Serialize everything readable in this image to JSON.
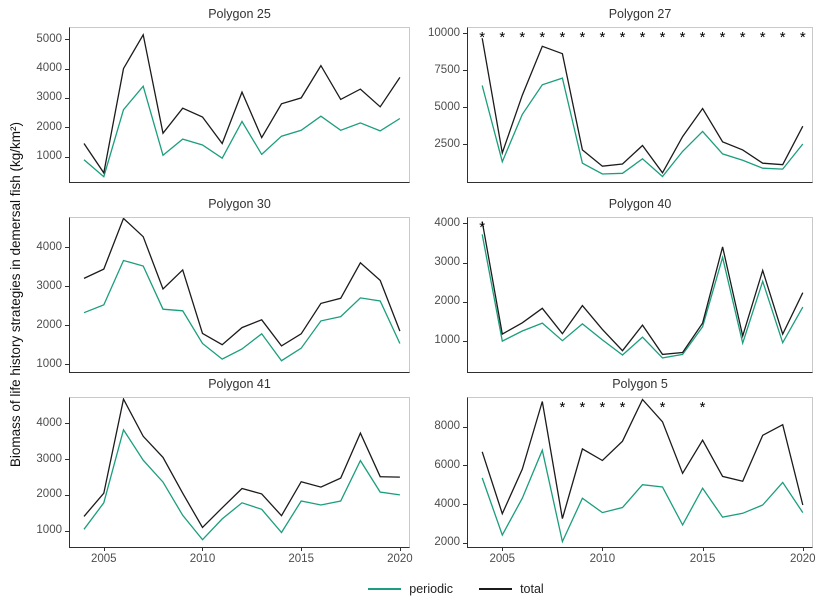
{
  "figure": {
    "y_axis_label": "Biomass of life history strategies in demersal fish (kg/km²)"
  },
  "chart_data": {
    "type": "line",
    "x_years": [
      2004,
      2005,
      2006,
      2007,
      2008,
      2009,
      2010,
      2011,
      2012,
      2013,
      2014,
      2015,
      2016,
      2017,
      2018,
      2019,
      2020
    ],
    "xlim": [
      2003.29,
      2020.46
    ],
    "xticks": [
      2005,
      2010,
      2015,
      2020
    ],
    "xlabel": "",
    "ylabel": "Biomass of life history strategies in demersal fish (kg/km²)",
    "grid": "off",
    "legend_position": "bottom",
    "legend": [
      {
        "name": "periodic",
        "color": "#1b9e7e"
      },
      {
        "name": "total",
        "color": "#1b1b1b"
      }
    ],
    "panels": [
      {
        "title": "Polygon 25",
        "ylim": [
          140,
          5380
        ],
        "yticks": [
          1000,
          2000,
          3000,
          4000,
          5000
        ],
        "asterisk_years": [],
        "series": {
          "periodic": [
            900,
            320,
            2600,
            3400,
            1050,
            1600,
            1400,
            950,
            2200,
            1080,
            1700,
            1900,
            2380,
            1900,
            2150,
            1880,
            2300
          ],
          "total": [
            1450,
            450,
            4000,
            5150,
            1800,
            2650,
            2350,
            1450,
            3200,
            1650,
            2800,
            3000,
            4100,
            2950,
            3300,
            2700,
            3700
          ]
        }
      },
      {
        "title": "Polygon 27",
        "ylim": [
          -70,
          10340
        ],
        "yticks": [
          2500,
          5000,
          7500,
          10000
        ],
        "asterisk_years": [
          2004,
          2005,
          2006,
          2007,
          2008,
          2009,
          2010,
          2011,
          2012,
          2013,
          2014,
          2015,
          2016,
          2017,
          2018,
          2019,
          2020
        ],
        "series": {
          "periodic": [
            6450,
            1300,
            4500,
            6500,
            6950,
            1200,
            470,
            520,
            1500,
            300,
            2000,
            3350,
            1830,
            1400,
            860,
            800,
            2500
          ],
          "total": [
            9650,
            1900,
            5800,
            9100,
            8600,
            2100,
            1000,
            1150,
            2400,
            550,
            3000,
            4900,
            2650,
            2100,
            1200,
            1100,
            3700
          ]
        }
      },
      {
        "title": "Polygon 30",
        "ylim": [
          800,
          4750
        ],
        "yticks": [
          1000,
          2000,
          3000,
          4000
        ],
        "asterisk_years": [],
        "series": {
          "periodic": [
            2320,
            2520,
            3660,
            3520,
            2410,
            2370,
            1530,
            1130,
            1390,
            1780,
            1090,
            1410,
            2110,
            2220,
            2700,
            2620,
            1530
          ],
          "total": [
            3200,
            3440,
            4740,
            4270,
            2930,
            3420,
            1790,
            1500,
            1940,
            2140,
            1470,
            1780,
            2560,
            2690,
            3600,
            3150,
            1850
          ]
        }
      },
      {
        "title": "Polygon 40",
        "ylim": [
          200,
          4140
        ],
        "yticks": [
          1000,
          2000,
          3000,
          4000
        ],
        "asterisk_years": [
          2004
        ],
        "series": {
          "periodic": [
            3720,
            990,
            1250,
            1450,
            1000,
            1430,
            1020,
            635,
            1090,
            560,
            650,
            1360,
            3130,
            940,
            2520,
            950,
            1860
          ],
          "total": [
            4050,
            1170,
            1460,
            1830,
            1180,
            1900,
            1290,
            745,
            1400,
            650,
            700,
            1450,
            3400,
            1120,
            2800,
            1170,
            2230
          ]
        }
      },
      {
        "title": "Polygon 41",
        "ylim": [
          545,
          4710
        ],
        "yticks": [
          1000,
          2000,
          3000,
          4000
        ],
        "asterisk_years": [],
        "series": {
          "periodic": [
            1040,
            1780,
            3820,
            2970,
            2360,
            1430,
            750,
            1330,
            1780,
            1600,
            950,
            1830,
            1720,
            1830,
            2960,
            2080,
            2000
          ],
          "total": [
            1400,
            2050,
            4680,
            3640,
            3050,
            2050,
            1090,
            1640,
            2180,
            2030,
            1420,
            2370,
            2220,
            2470,
            3730,
            2510,
            2500
          ]
        }
      },
      {
        "title": "Polygon 5",
        "ylim": [
          1780,
          9480
        ],
        "yticks": [
          2000,
          4000,
          6000,
          8000
        ],
        "asterisk_years": [
          2008,
          2009,
          2010,
          2011,
          2013,
          2015
        ],
        "series": {
          "periodic": [
            5350,
            2400,
            4300,
            6780,
            2060,
            4300,
            3560,
            3820,
            5000,
            4880,
            2920,
            4820,
            3320,
            3520,
            3950,
            5120,
            3560
          ],
          "total": [
            6700,
            3500,
            5800,
            9300,
            3250,
            6850,
            6250,
            7250,
            9400,
            8250,
            5590,
            7300,
            5430,
            5180,
            7550,
            8100,
            3950
          ]
        }
      }
    ]
  }
}
